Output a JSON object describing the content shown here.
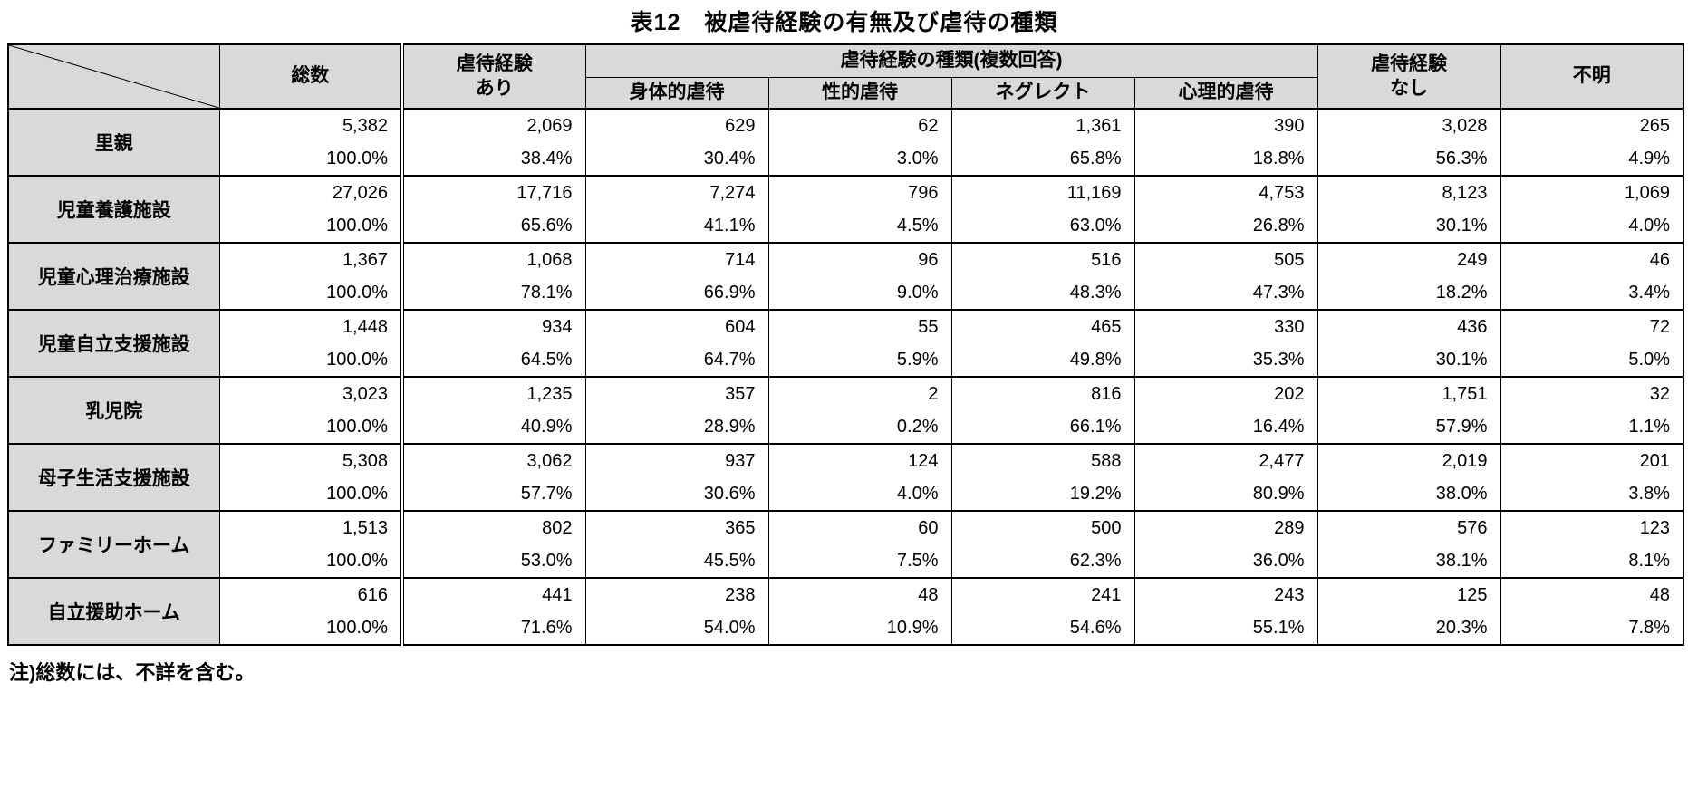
{
  "title": "表12　被虐待経験の有無及び虐待の種類",
  "note": "注)総数には、不詳を含む。",
  "table": {
    "col_headers": {
      "total": "総数",
      "abuse_yes_line1": "虐待経験",
      "abuse_yes_line2": "あり",
      "abuse_types_group": "虐待経験の種類(複数回答)",
      "physical": "身体的虐待",
      "sexual": "性的虐待",
      "neglect": "ネグレクト",
      "psychological": "心理的虐待",
      "abuse_no_line1": "虐待経験",
      "abuse_no_line2": "なし",
      "unknown": "不明"
    },
    "rows": [
      {
        "label": "里親",
        "counts": [
          "5,382",
          "2,069",
          "629",
          "62",
          "1,361",
          "390",
          "3,028",
          "265"
        ],
        "percents": [
          "100.0%",
          "38.4%",
          "30.4%",
          "3.0%",
          "65.8%",
          "18.8%",
          "56.3%",
          "4.9%"
        ]
      },
      {
        "label": "児童養護施設",
        "counts": [
          "27,026",
          "17,716",
          "7,274",
          "796",
          "11,169",
          "4,753",
          "8,123",
          "1,069"
        ],
        "percents": [
          "100.0%",
          "65.6%",
          "41.1%",
          "4.5%",
          "63.0%",
          "26.8%",
          "30.1%",
          "4.0%"
        ]
      },
      {
        "label": "児童心理治療施設",
        "counts": [
          "1,367",
          "1,068",
          "714",
          "96",
          "516",
          "505",
          "249",
          "46"
        ],
        "percents": [
          "100.0%",
          "78.1%",
          "66.9%",
          "9.0%",
          "48.3%",
          "47.3%",
          "18.2%",
          "3.4%"
        ]
      },
      {
        "label": "児童自立支援施設",
        "counts": [
          "1,448",
          "934",
          "604",
          "55",
          "465",
          "330",
          "436",
          "72"
        ],
        "percents": [
          "100.0%",
          "64.5%",
          "64.7%",
          "5.9%",
          "49.8%",
          "35.3%",
          "30.1%",
          "5.0%"
        ]
      },
      {
        "label": "乳児院",
        "counts": [
          "3,023",
          "1,235",
          "357",
          "2",
          "816",
          "202",
          "1,751",
          "32"
        ],
        "percents": [
          "100.0%",
          "40.9%",
          "28.9%",
          "0.2%",
          "66.1%",
          "16.4%",
          "57.9%",
          "1.1%"
        ]
      },
      {
        "label": "母子生活支援施設",
        "counts": [
          "5,308",
          "3,062",
          "937",
          "124",
          "588",
          "2,477",
          "2,019",
          "201"
        ],
        "percents": [
          "100.0%",
          "57.7%",
          "30.6%",
          "4.0%",
          "19.2%",
          "80.9%",
          "38.0%",
          "3.8%"
        ]
      },
      {
        "label": "ファミリーホーム",
        "counts": [
          "1,513",
          "802",
          "365",
          "60",
          "500",
          "289",
          "576",
          "123"
        ],
        "percents": [
          "100.0%",
          "53.0%",
          "45.5%",
          "7.5%",
          "62.3%",
          "36.0%",
          "38.1%",
          "8.1%"
        ]
      },
      {
        "label": "自立援助ホーム",
        "counts": [
          "616",
          "441",
          "238",
          "48",
          "241",
          "243",
          "125",
          "48"
        ],
        "percents": [
          "100.0%",
          "71.6%",
          "54.0%",
          "10.9%",
          "54.6%",
          "55.1%",
          "20.3%",
          "7.8%"
        ]
      }
    ]
  }
}
